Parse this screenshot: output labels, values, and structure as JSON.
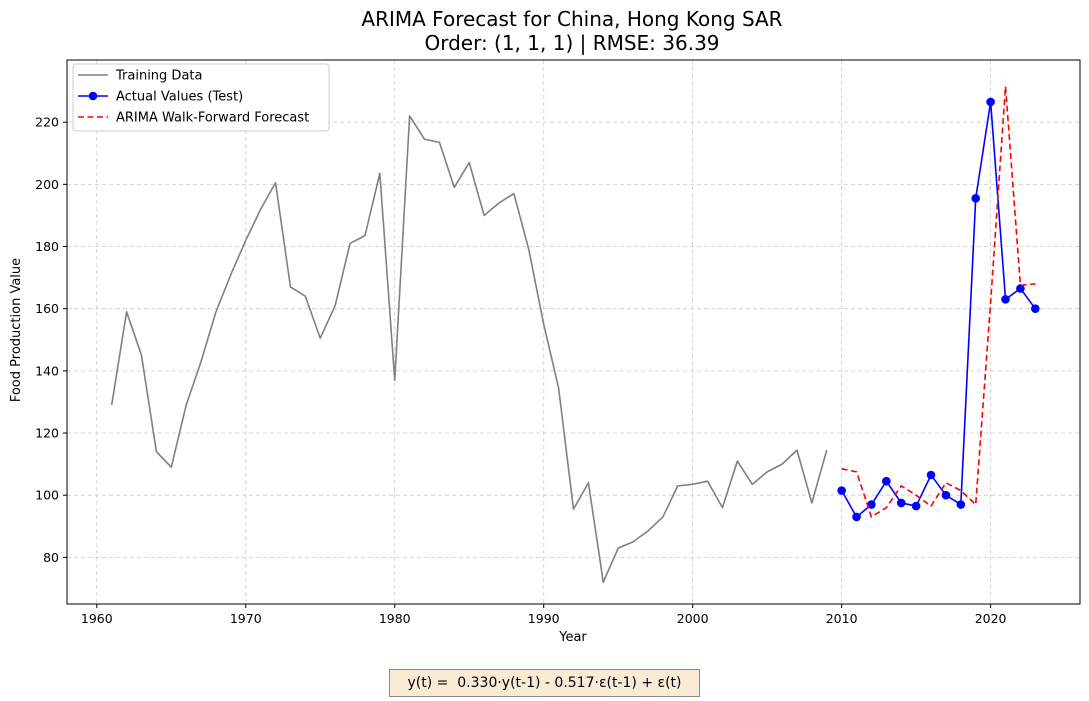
{
  "chart_data": {
    "type": "line",
    "title": "ARIMA Forecast for China, Hong Kong SAR",
    "subtitle": "Order: (1, 1, 1) | RMSE: 36.39",
    "xlabel": "Year",
    "ylabel": "Food Production Value",
    "xlim": [
      1958,
      2026
    ],
    "ylim": [
      65,
      240
    ],
    "xticks": [
      1960,
      1970,
      1980,
      1990,
      2000,
      2010,
      2020
    ],
    "yticks": [
      80,
      100,
      120,
      140,
      160,
      180,
      200,
      220
    ],
    "grid": true,
    "legend_position": "top-left",
    "series": [
      {
        "name": "Training Data",
        "color": "#808080",
        "style": "solid",
        "x": [
          1961,
          1962,
          1963,
          1964,
          1965,
          1966,
          1967,
          1968,
          1969,
          1970,
          1971,
          1972,
          1973,
          1974,
          1975,
          1976,
          1977,
          1978,
          1979,
          1980,
          1981,
          1982,
          1983,
          1984,
          1985,
          1986,
          1987,
          1988,
          1989,
          1990,
          1991,
          1992,
          1993,
          1994,
          1995,
          1996,
          1997,
          1998,
          1999,
          2000,
          2001,
          2002,
          2003,
          2004,
          2005,
          2006,
          2007,
          2008,
          2009
        ],
        "y": [
          129,
          159,
          145,
          114,
          109,
          129,
          143,
          159,
          171,
          182,
          192,
          200.5,
          167,
          164,
          150.5,
          161,
          181,
          183.5,
          203.5,
          137,
          222,
          214.5,
          213.5,
          199,
          207,
          190,
          194,
          197,
          179,
          155,
          134.5,
          95.5,
          104,
          72,
          83,
          85,
          88.5,
          93,
          103,
          103.5,
          104.5,
          96,
          111,
          103.5,
          107.5,
          110,
          114.5,
          97.5,
          114.5
        ]
      },
      {
        "name": "Actual Values (Test)",
        "color": "#0000ff",
        "style": "solid-markers",
        "x": [
          2010,
          2011,
          2012,
          2013,
          2014,
          2015,
          2016,
          2017,
          2018,
          2019,
          2020,
          2021,
          2022,
          2023
        ],
        "y": [
          101.5,
          93,
          97,
          104.5,
          97.5,
          96.5,
          106.5,
          100,
          97,
          195.5,
          226.5,
          163,
          166.5,
          160
        ]
      },
      {
        "name": "ARIMA Walk-Forward Forecast",
        "color": "#ff0000",
        "style": "dashed",
        "x": [
          2010,
          2011,
          2012,
          2013,
          2014,
          2015,
          2016,
          2017,
          2018,
          2019,
          2020,
          2021,
          2022,
          2023
        ],
        "y": [
          108.5,
          107.5,
          93,
          96,
          103,
          100,
          96.5,
          104,
          101.5,
          97,
          162,
          231.5,
          167.5,
          168
        ]
      }
    ]
  },
  "equation": "y(t) =  0.330·y(t-1) - 0.517·ε(t-1) + ε(t)"
}
